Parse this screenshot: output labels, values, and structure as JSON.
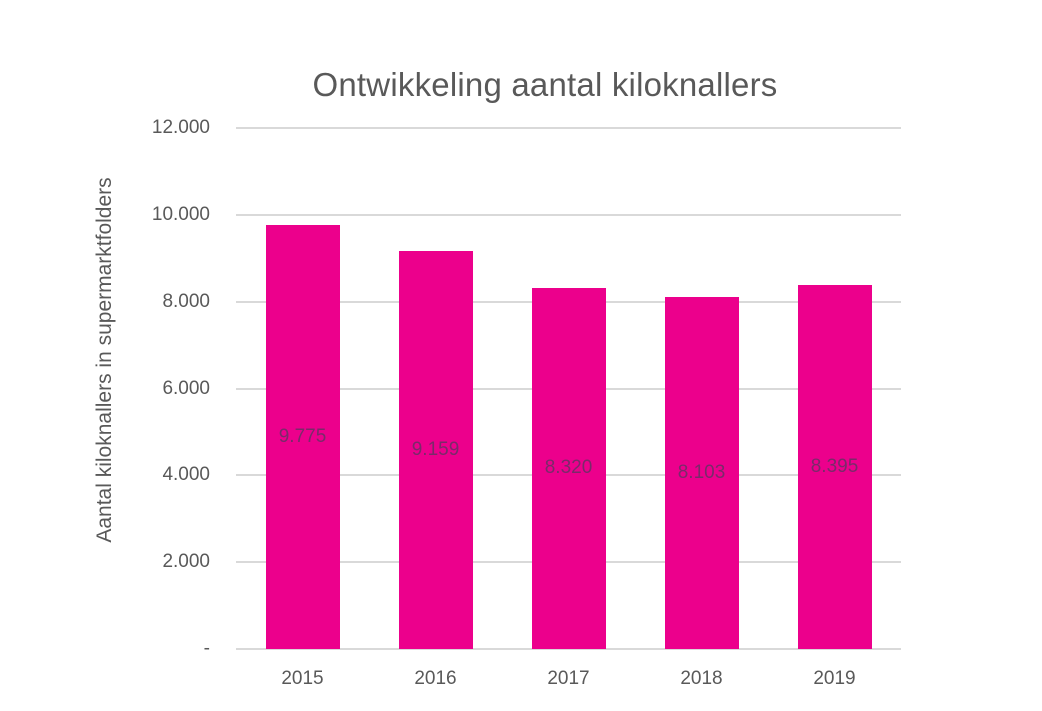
{
  "chart_data": {
    "type": "bar",
    "title": "Ontwikkeling aantal kiloknallers",
    "xlabel": "",
    "ylabel": "Aantal kiloknallers in supermarktfolders",
    "categories": [
      "2015",
      "2016",
      "2017",
      "2018",
      "2019"
    ],
    "values": [
      9775,
      9159,
      8320,
      8103,
      8395
    ],
    "value_labels": [
      "9.775",
      "9.159",
      "8.320",
      "8.103",
      "8.395"
    ],
    "ylim": [
      0,
      12000
    ],
    "yticks": [
      0,
      2000,
      4000,
      6000,
      8000,
      10000,
      12000
    ],
    "ytick_labels": [
      "-",
      "2.000",
      "4.000",
      "6.000",
      "8.000",
      "10.000",
      "12.000"
    ],
    "grid": true,
    "legend": null,
    "bar_color": "#ec008c"
  }
}
